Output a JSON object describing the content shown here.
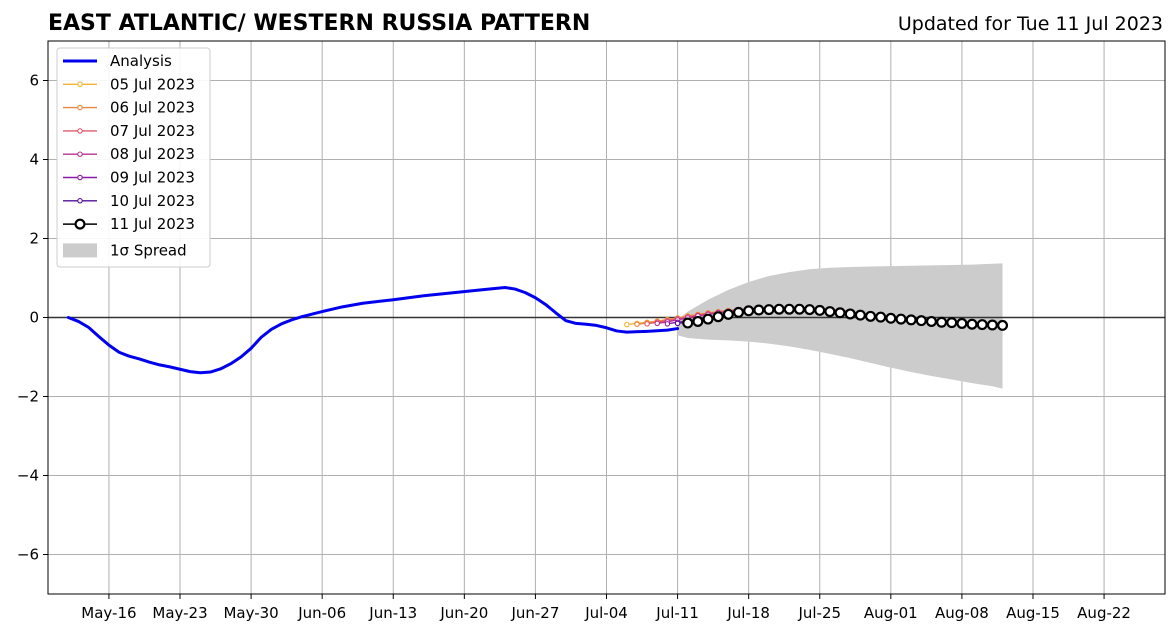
{
  "header": {
    "title": "EAST ATLANTIC/ WESTERN RUSSIA PATTERN",
    "updated": "Updated for Tue 11 Jul 2023"
  },
  "chart_data": {
    "type": "line",
    "title": "EAST ATLANTIC/ WESTERN RUSSIA PATTERN",
    "xlabel": "",
    "ylabel": "",
    "x_is_date": true,
    "xlim": [
      "2023-05-10",
      "2023-08-28"
    ],
    "ylim": [
      -7,
      7
    ],
    "grid": true,
    "legend_position": "top-left",
    "x_ticks": [
      {
        "date": "2023-05-16",
        "label": "May-16"
      },
      {
        "date": "2023-05-23",
        "label": "May-23"
      },
      {
        "date": "2023-05-30",
        "label": "May-30"
      },
      {
        "date": "2023-06-06",
        "label": "Jun-06"
      },
      {
        "date": "2023-06-13",
        "label": "Jun-13"
      },
      {
        "date": "2023-06-20",
        "label": "Jun-20"
      },
      {
        "date": "2023-06-27",
        "label": "Jun-27"
      },
      {
        "date": "2023-07-04",
        "label": "Jul-04"
      },
      {
        "date": "2023-07-11",
        "label": "Jul-11"
      },
      {
        "date": "2023-07-18",
        "label": "Jul-18"
      },
      {
        "date": "2023-07-25",
        "label": "Jul-25"
      },
      {
        "date": "2023-08-01",
        "label": "Aug-01"
      },
      {
        "date": "2023-08-08",
        "label": "Aug-08"
      },
      {
        "date": "2023-08-15",
        "label": "Aug-15"
      },
      {
        "date": "2023-08-22",
        "label": "Aug-22"
      }
    ],
    "y_ticks": [
      {
        "value": 6,
        "label": "6"
      },
      {
        "value": 4,
        "label": "4"
      },
      {
        "value": 2,
        "label": "2"
      },
      {
        "value": 0,
        "label": "0"
      },
      {
        "value": -2,
        "label": "−2"
      },
      {
        "value": -4,
        "label": "−4"
      },
      {
        "value": -6,
        "label": "−6"
      }
    ],
    "series": [
      {
        "name": "Analysis",
        "style": "line",
        "color": "#0000ee",
        "x": [
          "2023-05-12",
          "2023-05-13",
          "2023-05-14",
          "2023-05-15",
          "2023-05-16",
          "2023-05-17",
          "2023-05-18",
          "2023-05-19",
          "2023-05-20",
          "2023-05-21",
          "2023-05-22",
          "2023-05-23",
          "2023-05-24",
          "2023-05-25",
          "2023-05-26",
          "2023-05-27",
          "2023-05-28",
          "2023-05-29",
          "2023-05-30",
          "2023-05-31",
          "2023-06-01",
          "2023-06-02",
          "2023-06-03",
          "2023-06-04",
          "2023-06-06",
          "2023-06-08",
          "2023-06-10",
          "2023-06-13",
          "2023-06-16",
          "2023-06-19",
          "2023-06-22",
          "2023-06-24",
          "2023-06-25",
          "2023-06-26",
          "2023-06-27",
          "2023-06-28",
          "2023-06-29",
          "2023-06-30",
          "2023-07-01",
          "2023-07-02",
          "2023-07-03",
          "2023-07-04",
          "2023-07-05",
          "2023-07-06",
          "2023-07-08",
          "2023-07-10",
          "2023-07-11"
        ],
        "values": [
          0.0,
          -0.1,
          -0.25,
          -0.48,
          -0.7,
          -0.88,
          -0.98,
          -1.05,
          -1.13,
          -1.2,
          -1.25,
          -1.31,
          -1.37,
          -1.4,
          -1.38,
          -1.3,
          -1.17,
          -1.0,
          -0.78,
          -0.5,
          -0.3,
          -0.16,
          -0.06,
          0.02,
          0.15,
          0.27,
          0.36,
          0.45,
          0.55,
          0.63,
          0.71,
          0.76,
          0.72,
          0.63,
          0.5,
          0.33,
          0.12,
          -0.08,
          -0.15,
          -0.17,
          -0.2,
          -0.26,
          -0.34,
          -0.37,
          -0.35,
          -0.32,
          -0.28
        ]
      },
      {
        "name": "05 Jul 2023",
        "style": "line-small-markers",
        "color": "#f5b333",
        "x": [
          "2023-07-06",
          "2023-07-07",
          "2023-07-08",
          "2023-07-09",
          "2023-07-10",
          "2023-07-11",
          "2023-07-12",
          "2023-07-13",
          "2023-07-14",
          "2023-07-15",
          "2023-07-16",
          "2023-07-17",
          "2023-07-18"
        ],
        "values": [
          -0.18,
          -0.15,
          -0.12,
          -0.09,
          -0.05,
          -0.01,
          0.04,
          0.08,
          0.12,
          0.15,
          0.18,
          0.2,
          0.22
        ]
      },
      {
        "name": "06 Jul 2023",
        "style": "line-small-markers",
        "color": "#ee8340",
        "x": [
          "2023-07-07",
          "2023-07-08",
          "2023-07-09",
          "2023-07-10",
          "2023-07-11",
          "2023-07-12",
          "2023-07-13",
          "2023-07-14",
          "2023-07-15",
          "2023-07-16",
          "2023-07-17",
          "2023-07-18",
          "2023-07-19"
        ],
        "values": [
          -0.17,
          -0.14,
          -0.1,
          -0.06,
          -0.02,
          0.03,
          0.07,
          0.11,
          0.14,
          0.17,
          0.19,
          0.21,
          0.22
        ]
      },
      {
        "name": "07 Jul 2023",
        "style": "line-small-markers",
        "color": "#e05a6d",
        "x": [
          "2023-07-08",
          "2023-07-09",
          "2023-07-10",
          "2023-07-11",
          "2023-07-12",
          "2023-07-13",
          "2023-07-14",
          "2023-07-15",
          "2023-07-16",
          "2023-07-17",
          "2023-07-18",
          "2023-07-19",
          "2023-07-20",
          "2023-07-22",
          "2023-07-24",
          "2023-07-26",
          "2023-07-28"
        ],
        "values": [
          -0.16,
          -0.12,
          -0.08,
          -0.03,
          0.02,
          0.06,
          0.1,
          0.14,
          0.17,
          0.2,
          0.22,
          0.23,
          0.24,
          0.24,
          0.23,
          0.2,
          0.16
        ]
      },
      {
        "name": "08 Jul 2023",
        "style": "line-small-markers",
        "color": "#b83290",
        "x": [
          "2023-07-09",
          "2023-07-10",
          "2023-07-11",
          "2023-07-12",
          "2023-07-13",
          "2023-07-14",
          "2023-07-15",
          "2023-07-16",
          "2023-07-17",
          "2023-07-18"
        ],
        "values": [
          -0.15,
          -0.11,
          -0.06,
          -0.01,
          0.04,
          0.08,
          0.12,
          0.15,
          0.18,
          0.2
        ]
      },
      {
        "name": "09 Jul 2023",
        "style": "line-small-markers",
        "color": "#8a1aa8",
        "x": [
          "2023-07-10",
          "2023-07-11",
          "2023-07-12",
          "2023-07-13",
          "2023-07-14",
          "2023-07-15",
          "2023-07-16"
        ],
        "values": [
          -0.16,
          -0.12,
          -0.08,
          -0.03,
          0.01,
          0.05,
          0.09
        ]
      },
      {
        "name": "10 Jul 2023",
        "style": "line-small-markers",
        "color": "#521099",
        "x": [
          "2023-07-11",
          "2023-07-12",
          "2023-07-13",
          "2023-07-14",
          "2023-07-15"
        ],
        "values": [
          -0.15,
          -0.11,
          -0.06,
          -0.02,
          0.02
        ]
      },
      {
        "name": "11 Jul 2023",
        "style": "line-big-markers",
        "color": "#000000",
        "x": [
          "2023-07-12",
          "2023-07-13",
          "2023-07-14",
          "2023-07-15",
          "2023-07-16",
          "2023-07-17",
          "2023-07-18",
          "2023-07-19",
          "2023-07-20",
          "2023-07-21",
          "2023-07-22",
          "2023-07-23",
          "2023-07-24",
          "2023-07-25",
          "2023-07-26",
          "2023-07-27",
          "2023-07-28",
          "2023-07-29",
          "2023-07-30",
          "2023-07-31",
          "2023-08-01",
          "2023-08-02",
          "2023-08-03",
          "2023-08-04",
          "2023-08-05",
          "2023-08-06",
          "2023-08-07",
          "2023-08-08",
          "2023-08-09",
          "2023-08-10",
          "2023-08-11",
          "2023-08-12"
        ],
        "values": [
          -0.14,
          -0.1,
          -0.04,
          0.02,
          0.08,
          0.13,
          0.17,
          0.19,
          0.2,
          0.21,
          0.21,
          0.21,
          0.2,
          0.18,
          0.15,
          0.12,
          0.09,
          0.06,
          0.03,
          0.01,
          -0.02,
          -0.04,
          -0.06,
          -0.08,
          -0.1,
          -0.12,
          -0.13,
          -0.15,
          -0.17,
          -0.18,
          -0.19,
          -0.2
        ]
      }
    ],
    "spread": {
      "name": "1σ Spread",
      "color": "#cccccc",
      "x": [
        "2023-07-11",
        "2023-07-12",
        "2023-07-14",
        "2023-07-16",
        "2023-07-18",
        "2023-07-20",
        "2023-07-22",
        "2023-07-24",
        "2023-07-26",
        "2023-07-28",
        "2023-07-30",
        "2023-08-01",
        "2023-08-03",
        "2023-08-05",
        "2023-08-07",
        "2023-08-09",
        "2023-08-11",
        "2023-08-12"
      ],
      "upper": [
        -0.05,
        0.15,
        0.45,
        0.7,
        0.9,
        1.05,
        1.15,
        1.22,
        1.26,
        1.28,
        1.29,
        1.3,
        1.31,
        1.32,
        1.33,
        1.34,
        1.36,
        1.37
      ],
      "lower": [
        -0.45,
        -0.52,
        -0.56,
        -0.58,
        -0.61,
        -0.66,
        -0.73,
        -0.82,
        -0.92,
        -1.03,
        -1.15,
        -1.27,
        -1.38,
        -1.48,
        -1.57,
        -1.66,
        -1.74,
        -1.8
      ]
    }
  }
}
